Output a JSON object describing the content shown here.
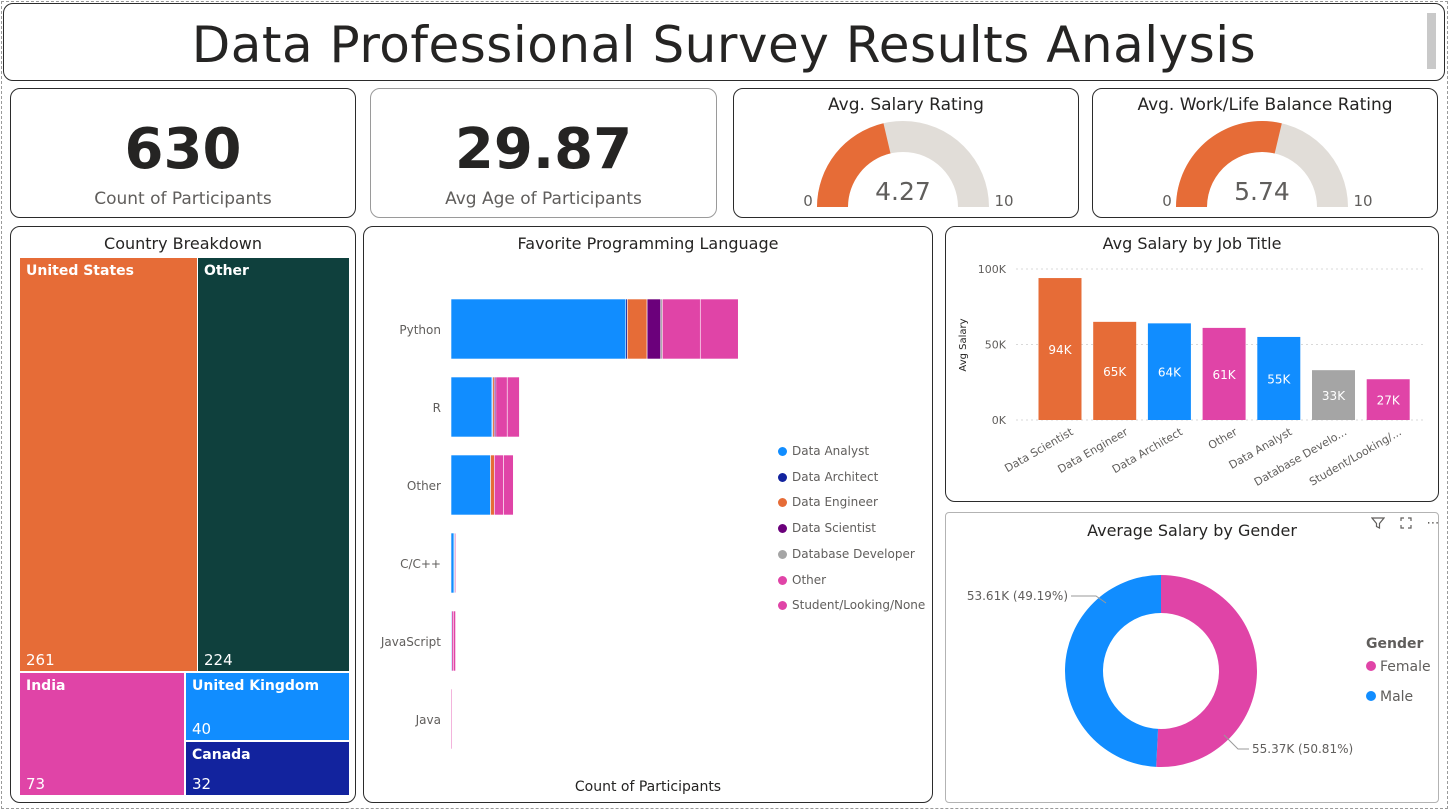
{
  "header": {
    "title": "Data Professional Survey Results Analysis"
  },
  "kpis": [
    {
      "value": "630",
      "label": "Count of Participants"
    },
    {
      "value": "29.87",
      "label": "Avg Age of Participants"
    }
  ],
  "gauges": [
    {
      "title": "Avg. Salary Rating",
      "value": 4.27,
      "value_label": "4.27",
      "min_label": "0",
      "max_label": "10",
      "min": 0,
      "max": 10
    },
    {
      "title": "Avg. Work/Life Balance Rating",
      "value": 5.74,
      "value_label": "5.74",
      "min_label": "0",
      "max_label": "10",
      "min": 0,
      "max": 10
    }
  ],
  "colors": {
    "Data Analyst": "#118DFF",
    "Data Architect": "#12239E",
    "Data Engineer": "#E66C37",
    "Data Scientist": "#6B007B",
    "Database Developer": "#A5A5A5",
    "Other": "#E044A7",
    "Student/Looking/None": "#E044A7",
    "gauge_fill": "#E66C37",
    "gauge_track": "#E1DDD8",
    "us": "#E66C37",
    "country_other": "#0F403D",
    "india": "#E044A7",
    "uk": "#118DFF",
    "canada": "#12239E"
  },
  "treemap": {
    "title": "Country Breakdown",
    "items": [
      {
        "name": "United States",
        "value": 261
      },
      {
        "name": "Other",
        "value": 224
      },
      {
        "name": "India",
        "value": 73
      },
      {
        "name": "United Kingdom",
        "value": 40
      },
      {
        "name": "Canada",
        "value": 32
      }
    ]
  },
  "languages": {
    "title": "Favorite Programming Language",
    "xlabel": "Count of Participants",
    "legend": [
      "Data Analyst",
      "Data Architect",
      "Data Engineer",
      "Data Scientist",
      "Database Developer",
      "Other",
      "Student/Looking/None"
    ]
  },
  "gender": {
    "title": "Average Salary by Gender",
    "legend_title": "Gender",
    "labels": {
      "male": "53.61K (49.19%)",
      "female": "55.37K (50.81%)"
    }
  },
  "chart_data": [
    {
      "type": "bar",
      "title": "Favorite Programming Language",
      "orientation": "horizontal",
      "stacked": true,
      "xlabel": "Count of Participants",
      "categories": [
        "Python",
        "R",
        "Other",
        "C/C++",
        "JavaScript",
        "Java"
      ],
      "series": [
        {
          "name": "Data Analyst",
          "values": [
            230,
            54,
            52,
            4,
            1,
            0
          ]
        },
        {
          "name": "Data Architect",
          "values": [
            2,
            1,
            0,
            1,
            0,
            0
          ]
        },
        {
          "name": "Data Engineer",
          "values": [
            26,
            2,
            5,
            0,
            0,
            0
          ]
        },
        {
          "name": "Data Scientist",
          "values": [
            18,
            2,
            0,
            0,
            0,
            0
          ]
        },
        {
          "name": "Database Developer",
          "values": [
            2,
            0,
            0,
            0,
            0,
            0
          ]
        },
        {
          "name": "Other",
          "values": [
            50,
            15,
            12,
            1,
            2,
            1
          ]
        },
        {
          "name": "Student/Looking/None",
          "values": [
            50,
            16,
            13,
            0,
            3,
            0
          ]
        }
      ]
    },
    {
      "type": "bar",
      "title": "Avg Salary by Job Title",
      "ylabel": "Avg Salary",
      "categories": [
        "Data Scientist",
        "Data Engineer",
        "Data Architect",
        "Other",
        "Data Analyst",
        "Database Develo...",
        "Student/Looking/..."
      ],
      "values": [
        94,
        65,
        64,
        61,
        55,
        33,
        27
      ],
      "data_labels": [
        "94K",
        "65K",
        "64K",
        "61K",
        "55K",
        "33K",
        "27K"
      ],
      "bar_colors": [
        "#E66C37",
        "#E66C37",
        "#118DFF",
        "#E044A7",
        "#118DFF",
        "#A5A5A5",
        "#E044A7"
      ],
      "yticks": [
        "0K",
        "50K",
        "100K"
      ],
      "ylim": [
        0,
        100
      ],
      "grid": true
    },
    {
      "type": "pie",
      "title": "Average Salary by Gender",
      "donut": true,
      "categories": [
        "Female",
        "Male"
      ],
      "values": [
        55.37,
        53.61
      ],
      "percents": [
        50.81,
        49.19
      ],
      "colors": [
        "#E044A7",
        "#118DFF"
      ],
      "legend_position": "right"
    }
  ]
}
